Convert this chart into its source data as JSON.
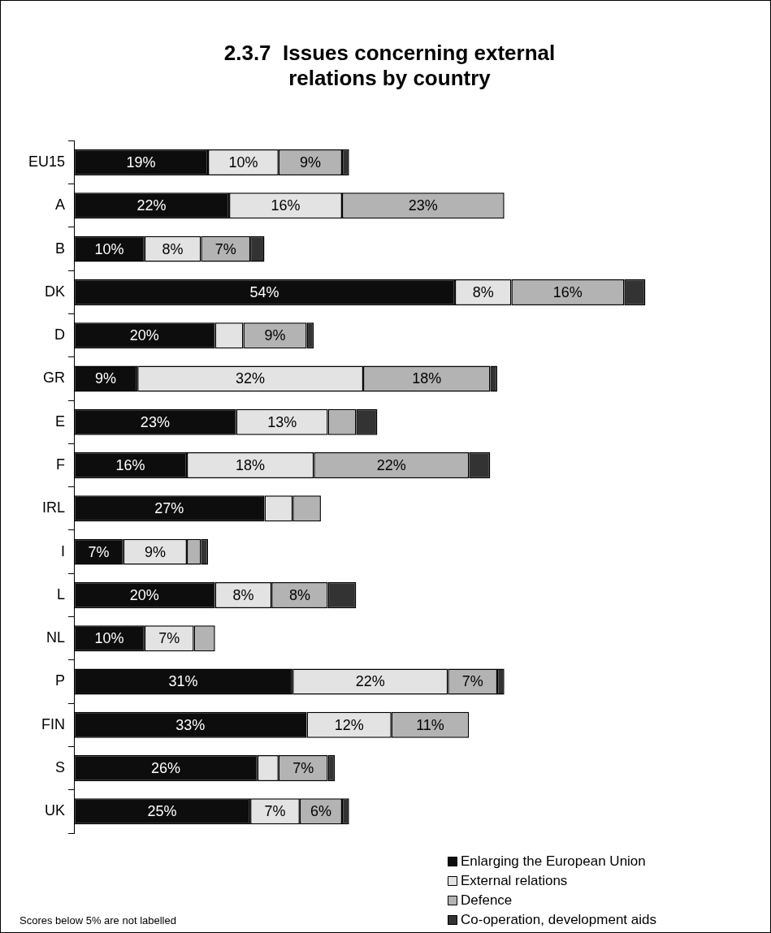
{
  "chart_data": {
    "type": "bar",
    "orientation": "horizontal",
    "stacked": true,
    "title": "2.3.7  Issues concerning external relations by country",
    "categories": [
      "EU15",
      "A",
      "B",
      "DK",
      "D",
      "GR",
      "E",
      "F",
      "IRL",
      "I",
      "L",
      "NL",
      "P",
      "FIN",
      "S",
      "UK"
    ],
    "series": [
      {
        "name": "Enlarging the European Union",
        "color": "#0d0d0d",
        "values": [
          19,
          22,
          10,
          54,
          20,
          9,
          23,
          16,
          27,
          7,
          20,
          10,
          31,
          33,
          26,
          25
        ],
        "value_labels": [
          "19%",
          "22%",
          "10%",
          "54%",
          "20%",
          "9%",
          "23%",
          "16%",
          "27%",
          "7%",
          "20%",
          "10%",
          "31%",
          "33%",
          "26%",
          "25%"
        ]
      },
      {
        "name": "External relations",
        "color": "#e3e3e3",
        "values": [
          10,
          16,
          8,
          8,
          4,
          32,
          13,
          18,
          4,
          9,
          8,
          7,
          22,
          12,
          3,
          7
        ],
        "value_labels": [
          "10%",
          "16%",
          "8%",
          "8%",
          null,
          "32%",
          "13%",
          "18%",
          null,
          "9%",
          "8%",
          "7%",
          "22%",
          "12%",
          null,
          "7%"
        ]
      },
      {
        "name": "Defence",
        "color": "#b3b3b3",
        "values": [
          9,
          23,
          7,
          16,
          9,
          18,
          4,
          22,
          4,
          2,
          8,
          3,
          7,
          11,
          7,
          6
        ],
        "value_labels": [
          "9%",
          "23%",
          "7%",
          "16%",
          "9%",
          "18%",
          null,
          "22%",
          null,
          null,
          "8%",
          null,
          "7%",
          "11%",
          "7%",
          "6%"
        ]
      },
      {
        "name": "Co-operation, development aids",
        "color": "#333333",
        "values": [
          1,
          0,
          2,
          3,
          1,
          1,
          3,
          3,
          0,
          1,
          4,
          0,
          1,
          0,
          1,
          1
        ],
        "value_labels": [
          null,
          null,
          null,
          null,
          null,
          null,
          null,
          null,
          null,
          null,
          null,
          null,
          null,
          null,
          null,
          null
        ]
      }
    ],
    "legend": "bottom right",
    "annotations": [
      "Scores below 5% are not labelled"
    ]
  }
}
